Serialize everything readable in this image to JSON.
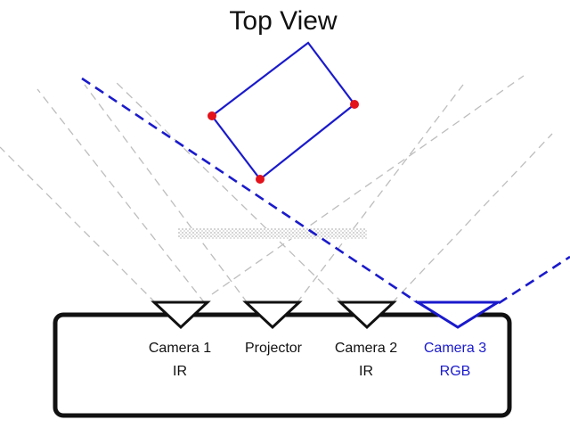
{
  "title": "Top View",
  "device": {
    "sensors": [
      {
        "id": "camera-1",
        "name": "Camera 1",
        "sub": "IR",
        "color": "#111111"
      },
      {
        "id": "projector",
        "name": "Projector",
        "sub": "",
        "color": "#111111"
      },
      {
        "id": "camera-2",
        "name": "Camera 2",
        "sub": "IR",
        "color": "#111111"
      },
      {
        "id": "camera-3",
        "name": "Camera 3",
        "sub": "RGB",
        "color": "#1a1acc"
      }
    ]
  },
  "colors": {
    "outline": "#111111",
    "object": "#1a1acc",
    "marker": "#e3121b",
    "field_of_view": "#bdbdbd"
  }
}
